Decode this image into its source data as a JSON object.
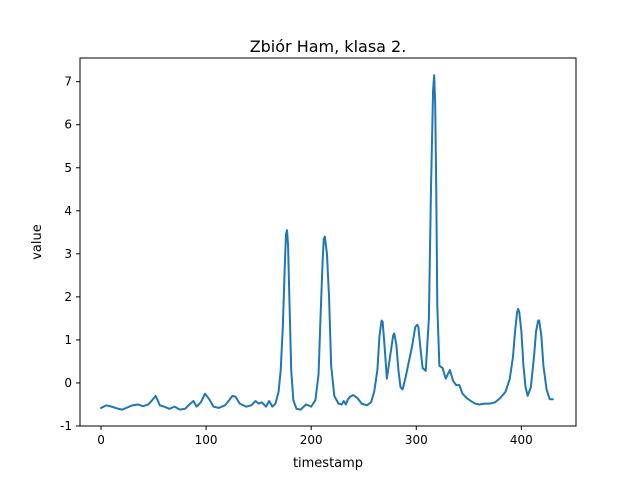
{
  "chart_data": {
    "type": "line",
    "title": "Zbiór Ham, klasa 2.",
    "xlabel": "timestamp",
    "ylabel": "value",
    "xlim": [
      -20,
      452
    ],
    "ylim": [
      -1.0,
      7.55
    ],
    "xticks": [
      0,
      100,
      200,
      300,
      400
    ],
    "yticks": [
      -1,
      0,
      1,
      2,
      3,
      4,
      5,
      6,
      7
    ],
    "grid": false,
    "color": "#1f77b4",
    "series": [
      {
        "x": [
          0,
          5,
          10,
          15,
          20,
          25,
          30,
          35,
          40,
          45,
          48,
          52,
          56,
          60,
          65,
          70,
          75,
          80,
          85,
          88,
          91,
          95,
          99,
          103,
          107,
          112,
          118,
          122,
          125,
          128,
          132,
          138,
          143,
          147,
          150,
          153,
          157,
          160,
          163,
          166,
          169,
          171,
          173,
          175,
          176,
          177,
          178,
          179,
          181,
          183,
          186,
          190,
          195,
          200,
          204,
          207,
          209,
          211,
          212,
          213,
          215,
          217,
          219,
          222,
          226,
          229,
          231,
          233,
          235,
          237,
          240,
          244,
          248,
          253,
          257,
          260,
          263,
          265,
          267,
          268,
          270,
          272,
          275,
          278,
          279,
          281,
          283,
          285,
          287,
          290,
          293,
          296,
          299,
          301,
          302,
          304,
          306,
          309,
          312,
          314,
          316,
          317,
          318,
          319,
          320,
          322,
          325,
          328,
          330,
          332,
          335,
          338,
          341,
          344,
          348,
          352,
          356,
          360,
          365,
          370,
          375,
          380,
          385,
          389,
          392,
          394,
          396,
          397,
          398,
          400,
          402,
          404,
          406,
          409,
          412,
          414,
          416,
          417,
          419,
          421,
          424,
          427,
          430
        ],
        "values": [
          -0.58,
          -0.52,
          -0.55,
          -0.59,
          -0.62,
          -0.57,
          -0.52,
          -0.5,
          -0.54,
          -0.5,
          -0.42,
          -0.3,
          -0.52,
          -0.55,
          -0.6,
          -0.55,
          -0.62,
          -0.6,
          -0.48,
          -0.42,
          -0.55,
          -0.45,
          -0.25,
          -0.38,
          -0.55,
          -0.58,
          -0.52,
          -0.4,
          -0.3,
          -0.32,
          -0.48,
          -0.55,
          -0.52,
          -0.42,
          -0.48,
          -0.45,
          -0.55,
          -0.42,
          -0.55,
          -0.48,
          -0.2,
          0.3,
          1.3,
          2.8,
          3.45,
          3.55,
          3.2,
          2.2,
          0.3,
          -0.4,
          -0.6,
          -0.62,
          -0.5,
          -0.55,
          -0.4,
          0.2,
          1.6,
          2.9,
          3.35,
          3.4,
          3.0,
          2.0,
          0.4,
          -0.3,
          -0.48,
          -0.5,
          -0.42,
          -0.5,
          -0.38,
          -0.32,
          -0.28,
          -0.35,
          -0.48,
          -0.52,
          -0.45,
          -0.2,
          0.3,
          1.1,
          1.45,
          1.42,
          0.8,
          0.1,
          0.6,
          1.1,
          1.15,
          0.9,
          0.3,
          -0.1,
          -0.15,
          0.15,
          0.5,
          0.85,
          1.3,
          1.35,
          1.3,
          0.8,
          0.35,
          0.28,
          1.5,
          4.5,
          6.8,
          7.15,
          6.5,
          4.5,
          1.8,
          0.4,
          0.35,
          0.1,
          0.2,
          0.3,
          0.05,
          -0.05,
          -0.05,
          -0.25,
          -0.35,
          -0.42,
          -0.48,
          -0.5,
          -0.48,
          -0.48,
          -0.45,
          -0.35,
          -0.2,
          0.1,
          0.6,
          1.2,
          1.65,
          1.72,
          1.65,
          1.2,
          0.4,
          -0.1,
          -0.3,
          -0.1,
          0.6,
          1.2,
          1.45,
          1.45,
          1.1,
          0.4,
          -0.15,
          -0.38,
          -0.38
        ]
      }
    ]
  }
}
